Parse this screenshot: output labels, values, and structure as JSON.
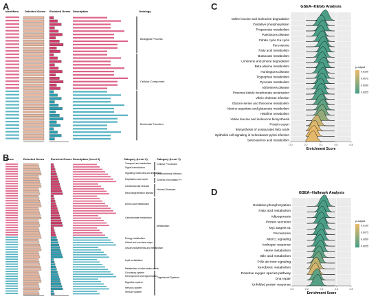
{
  "panel_labels": {
    "a": "A",
    "b": "B",
    "c": "C",
    "d": "D"
  },
  "panel_a": {
    "headers": {
      "id": "Identifiers",
      "detected": "Detected Genes",
      "enriched": "Enriched Genes",
      "desc": "Description",
      "ontology": "Ontology"
    },
    "groups": [
      {
        "name": "Biological Process",
        "color": "#d43c6b",
        "count": 11
      },
      {
        "name": "Cellular Component",
        "color": "#d43c6b",
        "count": 11
      },
      {
        "name": "Molecular Function",
        "color": "#2a9fb3",
        "count": 15
      }
    ],
    "colors": {
      "detected": "#e9b7a0",
      "enriched_bp": "#d43c6b",
      "enriched_mf": "#2a9fb3"
    }
  },
  "panel_b": {
    "headers": {
      "terms": "Terms",
      "detected": "Detected Genes",
      "enriched": "Enriched Genes",
      "desc": "Description (Level 3)",
      "l2": "Category (Level 2)",
      "l1": "Category (Level 1)"
    },
    "level2": [
      "Transport and catabolism",
      "Signal transduction",
      "Signaling molecules and interaction",
      "Replication and repair",
      "Cardiovascular disease",
      "Neurodegenerative disease",
      "Amino acid metabolism",
      "Carbohydrate metabolism",
      "Energy metabolism",
      "Global and overview maps",
      "Glycan biosynthesis and metabolism",
      "Lipid metabolism",
      "Metabolism of other amino acids",
      "Circulatory system",
      "Development and regeneration",
      "Digestive system",
      "Nervous system",
      "Sensory system"
    ],
    "level1": [
      "Cellular Processes",
      "Environmental Informa",
      "Genetic Information Pr",
      "Human Diseases",
      "Metabolism",
      "Organismal Systems"
    ],
    "colors": {
      "detected": "#e9b7a0",
      "enriched_top": "#d43c6b",
      "enriched_bottom": "#2a9fb3"
    }
  },
  "panel_c": {
    "title": "GSEA--KEGG Analysis",
    "xlabel": "Enrichment Score",
    "legend_title": "p.adjust",
    "legend_ticks": [
      "0.0100",
      "0.0075",
      "0.0050",
      "0.0025"
    ]
  },
  "panel_d": {
    "title": "GSEA--Hallmark Analysis",
    "xlabel": "Enrichment Score",
    "legend_title": "p.adjust",
    "legend_ticks": [
      "0.0100",
      "0.0075",
      "0.0050",
      "0.0025"
    ]
  },
  "chart_data": [
    {
      "type": "area",
      "panel": "C",
      "title": "GSEA--KEGG Analysis",
      "xlabel": "Enrichment Score",
      "xlim": [
        0.0,
        0.8
      ],
      "xticks": [
        "0.0",
        "0.2",
        "0.4",
        "0.6",
        "0.8"
      ],
      "categories": [
        "Valine leucine and isoleucine degradation",
        "Oxidative phosphorylation",
        "Propanoate metabolism",
        "Parkinsons disease",
        "Citrate cycle tca cycle",
        "Peroxisome",
        "Fatty acid metabolism",
        "Butanoate metabolism",
        "Limonene and pinene degradation",
        "Beta alanine metabolism",
        "Huntingtons disease",
        "Tryptophan metabolism",
        "Pyruvate metabolism",
        "Alzheimers disease",
        "Proximal tubule bicarbonate reclamation",
        "Vibrio cholerae infection",
        "Glycine serine and threonine metabolism",
        "Alanine aspartate and glutamate metabolism",
        "Histidine metabolism",
        "Valine leucine and isoleucine biosynthesis",
        "Protein export",
        "Biosynthesis of unsaturated fatty acids",
        "Epithelial cell signaling in helicobacter pylori infection",
        "Selenoamino acid metabolism"
      ],
      "peak_es": [
        0.47,
        0.42,
        0.44,
        0.41,
        0.43,
        0.45,
        0.46,
        0.44,
        0.43,
        0.45,
        0.42,
        0.44,
        0.43,
        0.41,
        0.42,
        0.4,
        0.42,
        0.44,
        0.43,
        0.42,
        0.36,
        0.33,
        0.32,
        0.31
      ],
      "p_adjust": [
        0.0012,
        0.001,
        0.0011,
        0.0013,
        0.0015,
        0.0014,
        0.0012,
        0.0016,
        0.0018,
        0.0019,
        0.002,
        0.0022,
        0.0021,
        0.0023,
        0.0025,
        0.0027,
        0.003,
        0.0035,
        0.0045,
        0.006,
        0.0085,
        0.0095,
        0.01,
        0.0098
      ],
      "color_scale": {
        "low": "#4a9e86",
        "high": "#e8b96a",
        "range": [
          0.0025,
          0.01
        ]
      }
    },
    {
      "type": "area",
      "panel": "D",
      "title": "GSEA--Hallmark Analysis",
      "xlabel": "Enrichment Score",
      "xlim": [
        0.0,
        0.8
      ],
      "xticks": [
        "0.0",
        "0.2",
        "0.4",
        "0.6",
        "0.8"
      ],
      "categories": [
        "Oxidative phosphorylation",
        "Fatty acid metabolism",
        "Adipogenesis",
        "Protein secretion",
        "Myc targets v1",
        "Peroxisome",
        "Mtorc1 signaling",
        "Androgen response",
        "Heme metabolism",
        "Bile acid metabolism",
        "PI3k akt mtor signaling",
        "Xenobiotic metabolism",
        "Reactive oxygen species pathway",
        "Dna repair",
        "Unfolded protein response"
      ],
      "peak_es": [
        0.45,
        0.44,
        0.42,
        0.41,
        0.43,
        0.4,
        0.41,
        0.39,
        0.4,
        0.38,
        0.37,
        0.34,
        0.33,
        0.35,
        0.36
      ],
      "p_adjust": [
        0.001,
        0.0012,
        0.0014,
        0.0016,
        0.0018,
        0.002,
        0.0022,
        0.0025,
        0.0028,
        0.0032,
        0.004,
        0.008,
        0.009,
        0.0035,
        0.003
      ],
      "color_scale": {
        "low": "#4a9e86",
        "high": "#e8b96a",
        "range": [
          0.0025,
          0.01
        ]
      }
    }
  ]
}
